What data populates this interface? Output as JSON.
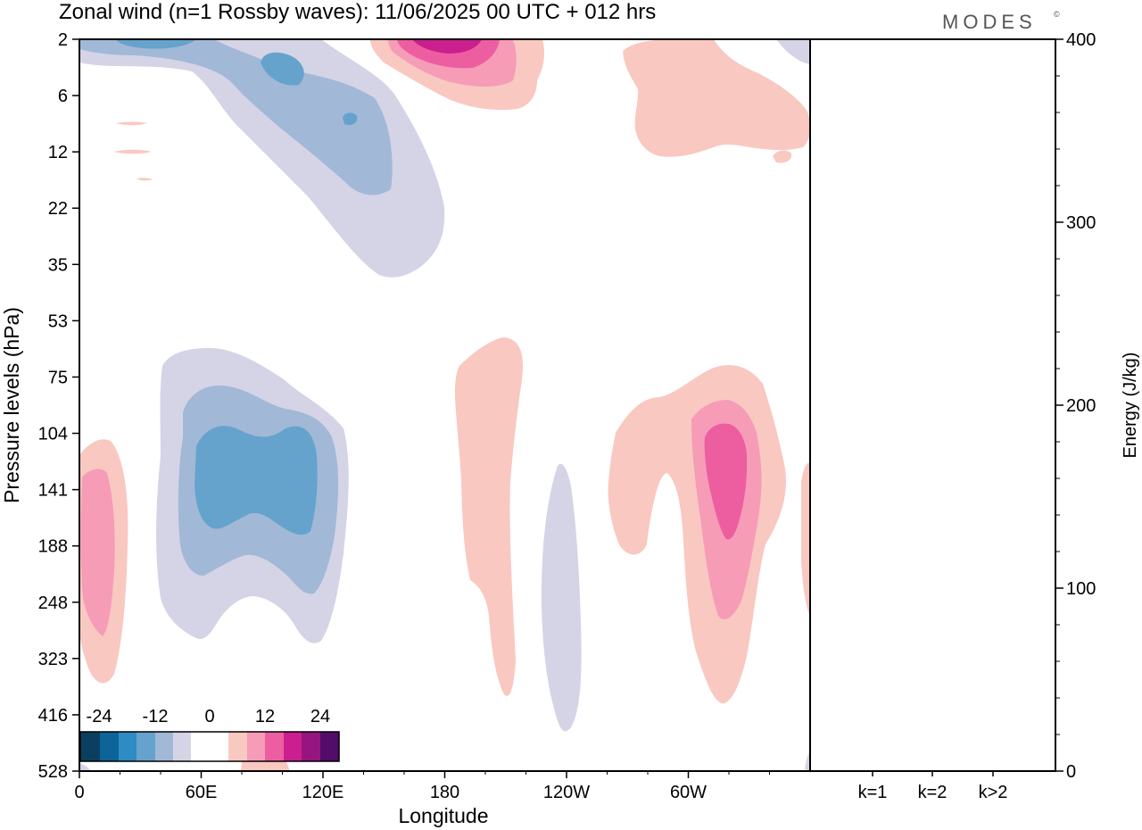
{
  "header": {
    "title": "Zonal wind (n=1 Rossby waves):  11/06/2025  00 UTC  + 012 hrs",
    "brand": "MODES",
    "brand_mark": "©"
  },
  "colors": {
    "scale": [
      "#0b3f5f",
      "#0d6499",
      "#2f8bc3",
      "#65a3cd",
      "#a2b8d7",
      "#d4d4e6",
      "#ffffff",
      "#f9c8c1",
      "#f69cb7",
      "#ed5ea0",
      "#cb1f8f",
      "#97157f",
      "#520c69"
    ],
    "frame": "#000000",
    "brand": "#555555"
  },
  "chart_data": [
    {
      "type": "heatmap",
      "title": "Zonal wind (n=1 Rossby waves):  11/06/2025  00 UTC  + 012 hrs",
      "xlabel": "Longitude",
      "ylabel": "Pressure levels (hPa)",
      "x_ticks": [
        "0",
        "60E",
        "120E",
        "180",
        "120W",
        "60W"
      ],
      "y_ticks": [
        "2",
        "6",
        "12",
        "22",
        "35",
        "53",
        "75",
        "104",
        "141",
        "188",
        "248",
        "323",
        "416",
        "528"
      ],
      "colorbar": {
        "tick_labels": [
          "-24",
          "-12",
          "0",
          "12",
          "24"
        ],
        "levels": [
          -30,
          -25,
          -20,
          -15,
          -10,
          -5,
          5,
          10,
          15,
          20,
          25,
          30
        ]
      },
      "features": [
        {
          "sign": "negative",
          "lon": 50,
          "level_hpa": 4,
          "peak": -15
        },
        {
          "sign": "negative",
          "lon": 115,
          "level_hpa": 10,
          "peak": -15
        },
        {
          "sign": "positive",
          "lon": 165,
          "level_hpa": 2,
          "peak": 20
        },
        {
          "sign": "positive",
          "lon": 275,
          "level_hpa": 6,
          "peak": 5
        },
        {
          "sign": "negative",
          "lon": 80,
          "level_hpa": 141,
          "peak": -15
        },
        {
          "sign": "positive",
          "lon": 12,
          "level_hpa": 188,
          "peak": 10
        },
        {
          "sign": "positive",
          "lon": 190,
          "level_hpa": 141,
          "peak": 5
        },
        {
          "sign": "negative",
          "lon": 228,
          "level_hpa": 248,
          "peak": -5
        },
        {
          "sign": "positive",
          "lon": 285,
          "level_hpa": 141,
          "peak": 15
        }
      ]
    },
    {
      "type": "bar",
      "categories": [
        "k=1",
        "k=2",
        "k>2"
      ],
      "values": [
        0.3,
        0.5,
        0.5
      ],
      "ylabel": "Energy (J/kg)",
      "y_ticks": [
        "0",
        "100",
        "200",
        "300",
        "400"
      ],
      "ylim": [
        0,
        400
      ]
    }
  ]
}
